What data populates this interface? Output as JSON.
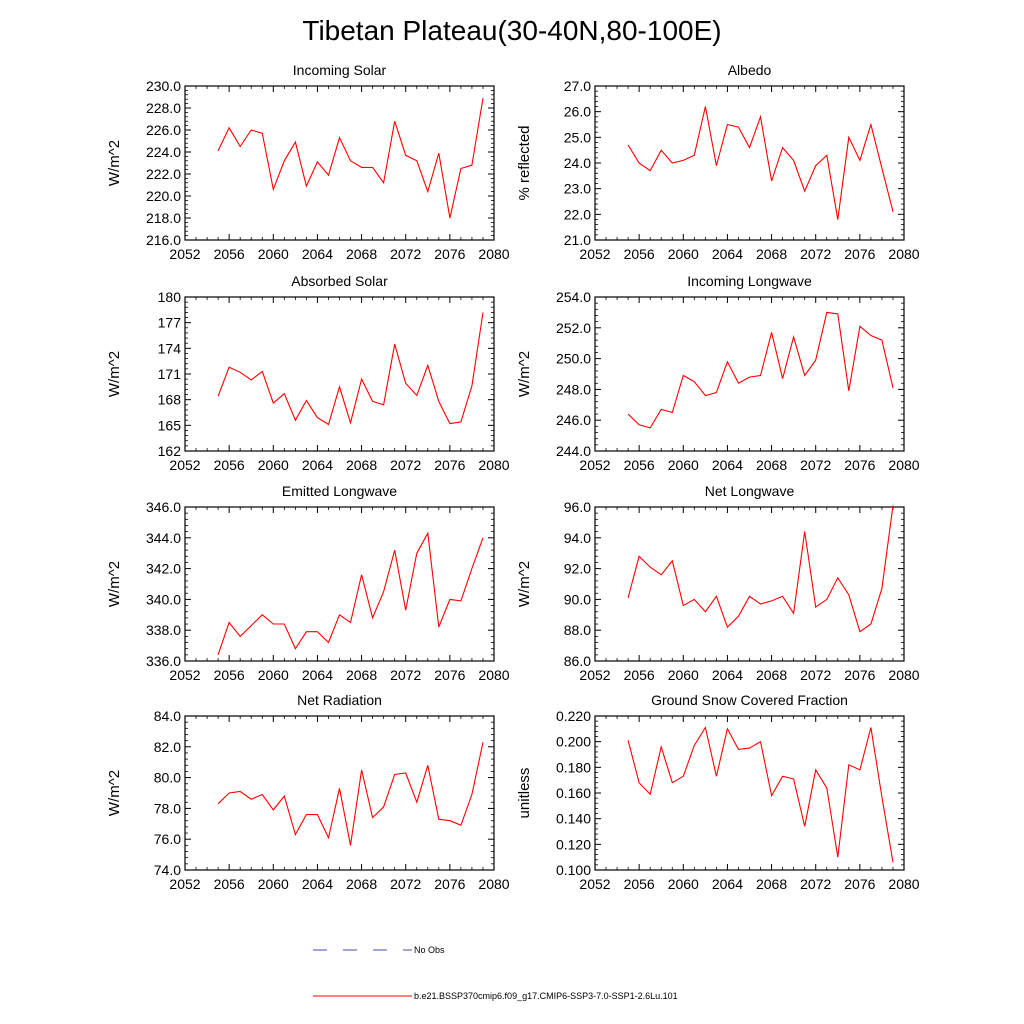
{
  "figure": {
    "title": "Tibetan Plateau(30-40N,80-100E)",
    "line_color": "#ff0000",
    "obs_color": "#4a4aa8"
  },
  "legend": {
    "obs_label": "No Obs",
    "model_label": "b.e21.BSSP370cmip6.f09_g17.CMIP6-SSP3-7.0-SSP1-2.6Lu.101"
  },
  "chart_data": [
    {
      "type": "line",
      "title": "Incoming Solar",
      "ylabel": "W/m^2",
      "xlim": [
        2052,
        2080
      ],
      "ylim": [
        216,
        230
      ],
      "yticks": [
        216,
        218,
        220,
        222,
        224,
        226,
        228,
        230
      ],
      "ytick_labels": [
        "216.0",
        "218.0",
        "220.0",
        "222.0",
        "224.0",
        "226.0",
        "228.0",
        "230.0"
      ],
      "xticks": [
        2052,
        2056,
        2060,
        2064,
        2068,
        2072,
        2076,
        2080
      ],
      "x": [
        2055,
        2056,
        2057,
        2058,
        2059,
        2060,
        2061,
        2062,
        2063,
        2064,
        2065,
        2066,
        2067,
        2068,
        2069,
        2070,
        2071,
        2072,
        2073,
        2074,
        2075,
        2076,
        2077,
        2078,
        2079
      ],
      "values": [
        224.1,
        226.2,
        224.5,
        226.0,
        225.7,
        220.6,
        223.2,
        224.9,
        220.9,
        223.1,
        221.9,
        225.3,
        223.2,
        222.6,
        222.6,
        221.2,
        226.8,
        223.7,
        223.2,
        220.4,
        223.9,
        218.0,
        222.5,
        222.8,
        228.9
      ]
    },
    {
      "type": "line",
      "title": "Albedo",
      "ylabel": "% reflected",
      "xlim": [
        2052,
        2080
      ],
      "ylim": [
        21,
        27
      ],
      "yticks": [
        21,
        22,
        23,
        24,
        25,
        26,
        27
      ],
      "ytick_labels": [
        "21.0",
        "22.0",
        "23.0",
        "24.0",
        "25.0",
        "26.0",
        "27.0"
      ],
      "xticks": [
        2052,
        2056,
        2060,
        2064,
        2068,
        2072,
        2076,
        2080
      ],
      "x": [
        2055,
        2056,
        2057,
        2058,
        2059,
        2060,
        2061,
        2062,
        2063,
        2064,
        2065,
        2066,
        2067,
        2068,
        2069,
        2070,
        2071,
        2072,
        2073,
        2074,
        2075,
        2076,
        2077,
        2078,
        2079
      ],
      "values": [
        24.7,
        24.0,
        23.7,
        24.5,
        24.0,
        24.1,
        24.3,
        26.2,
        23.9,
        25.5,
        25.4,
        24.6,
        25.8,
        23.3,
        24.6,
        24.1,
        22.9,
        23.9,
        24.3,
        21.8,
        25.0,
        24.1,
        25.5,
        23.8,
        22.1
      ]
    },
    {
      "type": "line",
      "title": "Absorbed Solar",
      "ylabel": "W/m^2",
      "xlim": [
        2052,
        2080
      ],
      "ylim": [
        162,
        180
      ],
      "yticks": [
        162,
        165,
        168,
        171,
        174,
        177,
        180
      ],
      "ytick_labels": [
        "162",
        "165",
        "168",
        "171",
        "174",
        "177",
        "180"
      ],
      "xticks": [
        2052,
        2056,
        2060,
        2064,
        2068,
        2072,
        2076,
        2080
      ],
      "x": [
        2055,
        2056,
        2057,
        2058,
        2059,
        2060,
        2061,
        2062,
        2063,
        2064,
        2065,
        2066,
        2067,
        2068,
        2069,
        2070,
        2071,
        2072,
        2073,
        2074,
        2075,
        2076,
        2077,
        2078,
        2079
      ],
      "values": [
        168.4,
        171.8,
        171.2,
        170.3,
        171.3,
        167.6,
        168.7,
        165.6,
        167.9,
        165.9,
        165.1,
        169.5,
        165.3,
        170.4,
        167.8,
        167.4,
        174.5,
        169.9,
        168.5,
        172.0,
        167.8,
        165.2,
        165.4,
        169.6,
        178.2
      ]
    },
    {
      "type": "line",
      "title": "Incoming Longwave",
      "ylabel": "W/m^2",
      "xlim": [
        2052,
        2080
      ],
      "ylim": [
        244,
        254
      ],
      "yticks": [
        244,
        246,
        248,
        250,
        252,
        254
      ],
      "ytick_labels": [
        "244.0",
        "246.0",
        "248.0",
        "250.0",
        "252.0",
        "254.0"
      ],
      "xticks": [
        2052,
        2056,
        2060,
        2064,
        2068,
        2072,
        2076,
        2080
      ],
      "x": [
        2055,
        2056,
        2057,
        2058,
        2059,
        2060,
        2061,
        2062,
        2063,
        2064,
        2065,
        2066,
        2067,
        2068,
        2069,
        2070,
        2071,
        2072,
        2073,
        2074,
        2075,
        2076,
        2077,
        2078,
        2079
      ],
      "values": [
        246.4,
        245.7,
        245.5,
        246.7,
        246.5,
        248.9,
        248.5,
        247.6,
        247.8,
        249.8,
        248.4,
        248.8,
        248.9,
        251.7,
        248.7,
        251.4,
        248.9,
        249.9,
        253.0,
        252.9,
        247.9,
        252.1,
        251.5,
        251.2,
        248.1
      ]
    },
    {
      "type": "line",
      "title": "Emitted Longwave",
      "ylabel": "W/m^2",
      "xlim": [
        2052,
        2080
      ],
      "ylim": [
        336,
        346
      ],
      "yticks": [
        336,
        338,
        340,
        342,
        344,
        346
      ],
      "ytick_labels": [
        "336.0",
        "338.0",
        "340.0",
        "342.0",
        "344.0",
        "346.0"
      ],
      "xticks": [
        2052,
        2056,
        2060,
        2064,
        2068,
        2072,
        2076,
        2080
      ],
      "x": [
        2055,
        2056,
        2057,
        2058,
        2059,
        2060,
        2061,
        2062,
        2063,
        2064,
        2065,
        2066,
        2067,
        2068,
        2069,
        2070,
        2071,
        2072,
        2073,
        2074,
        2075,
        2076,
        2077,
        2078,
        2079
      ],
      "values": [
        336.4,
        338.5,
        337.6,
        338.3,
        339.0,
        338.4,
        338.4,
        336.8,
        337.9,
        337.9,
        337.2,
        339.0,
        338.5,
        341.6,
        338.8,
        340.5,
        343.2,
        339.3,
        343.0,
        344.3,
        338.2,
        340.0,
        339.9,
        342.0,
        344.0
      ]
    },
    {
      "type": "line",
      "title": "Net Longwave",
      "ylabel": "W/m^2",
      "xlim": [
        2052,
        2080
      ],
      "ylim": [
        86,
        96
      ],
      "yticks": [
        86,
        88,
        90,
        92,
        94,
        96
      ],
      "ytick_labels": [
        "86.0",
        "88.0",
        "90.0",
        "92.0",
        "94.0",
        "96.0"
      ],
      "xticks": [
        2052,
        2056,
        2060,
        2064,
        2068,
        2072,
        2076,
        2080
      ],
      "x": [
        2055,
        2056,
        2057,
        2058,
        2059,
        2060,
        2061,
        2062,
        2063,
        2064,
        2065,
        2066,
        2067,
        2068,
        2069,
        2070,
        2071,
        2072,
        2073,
        2074,
        2075,
        2076,
        2077,
        2078,
        2079
      ],
      "values": [
        90.1,
        92.8,
        92.1,
        91.6,
        92.5,
        89.6,
        90.0,
        89.2,
        90.2,
        88.2,
        88.9,
        90.2,
        89.7,
        89.9,
        90.2,
        89.1,
        94.4,
        89.5,
        90.0,
        91.4,
        90.3,
        87.9,
        88.4,
        90.7,
        96.1
      ]
    },
    {
      "type": "line",
      "title": "Net Radiation",
      "ylabel": "W/m^2",
      "xlim": [
        2052,
        2080
      ],
      "ylim": [
        74,
        84
      ],
      "yticks": [
        74,
        76,
        78,
        80,
        82,
        84
      ],
      "ytick_labels": [
        "74.0",
        "76.0",
        "78.0",
        "80.0",
        "82.0",
        "84.0"
      ],
      "xticks": [
        2052,
        2056,
        2060,
        2064,
        2068,
        2072,
        2076,
        2080
      ],
      "x": [
        2055,
        2056,
        2057,
        2058,
        2059,
        2060,
        2061,
        2062,
        2063,
        2064,
        2065,
        2066,
        2067,
        2068,
        2069,
        2070,
        2071,
        2072,
        2073,
        2074,
        2075,
        2076,
        2077,
        2078,
        2079
      ],
      "values": [
        78.3,
        79.0,
        79.1,
        78.6,
        78.9,
        77.9,
        78.8,
        76.3,
        77.6,
        77.6,
        76.1,
        79.3,
        75.6,
        80.5,
        77.4,
        78.1,
        80.2,
        80.3,
        78.4,
        80.8,
        77.3,
        77.2,
        76.9,
        78.9,
        82.3
      ]
    },
    {
      "type": "line",
      "title": "Ground Snow Covered Fraction",
      "ylabel": "unitless",
      "xlim": [
        2052,
        2080
      ],
      "ylim": [
        0.1,
        0.22
      ],
      "yticks": [
        0.1,
        0.12,
        0.14,
        0.16,
        0.18,
        0.2,
        0.22
      ],
      "ytick_labels": [
        "0.100",
        "0.120",
        "0.140",
        "0.160",
        "0.180",
        "0.200",
        "0.220"
      ],
      "xticks": [
        2052,
        2056,
        2060,
        2064,
        2068,
        2072,
        2076,
        2080
      ],
      "x": [
        2055,
        2056,
        2057,
        2058,
        2059,
        2060,
        2061,
        2062,
        2063,
        2064,
        2065,
        2066,
        2067,
        2068,
        2069,
        2070,
        2071,
        2072,
        2073,
        2074,
        2075,
        2076,
        2077,
        2078,
        2079
      ],
      "values": [
        0.201,
        0.168,
        0.159,
        0.196,
        0.168,
        0.173,
        0.197,
        0.211,
        0.173,
        0.21,
        0.194,
        0.195,
        0.2,
        0.158,
        0.173,
        0.171,
        0.134,
        0.178,
        0.164,
        0.11,
        0.182,
        0.178,
        0.211,
        0.157,
        0.106
      ]
    }
  ]
}
